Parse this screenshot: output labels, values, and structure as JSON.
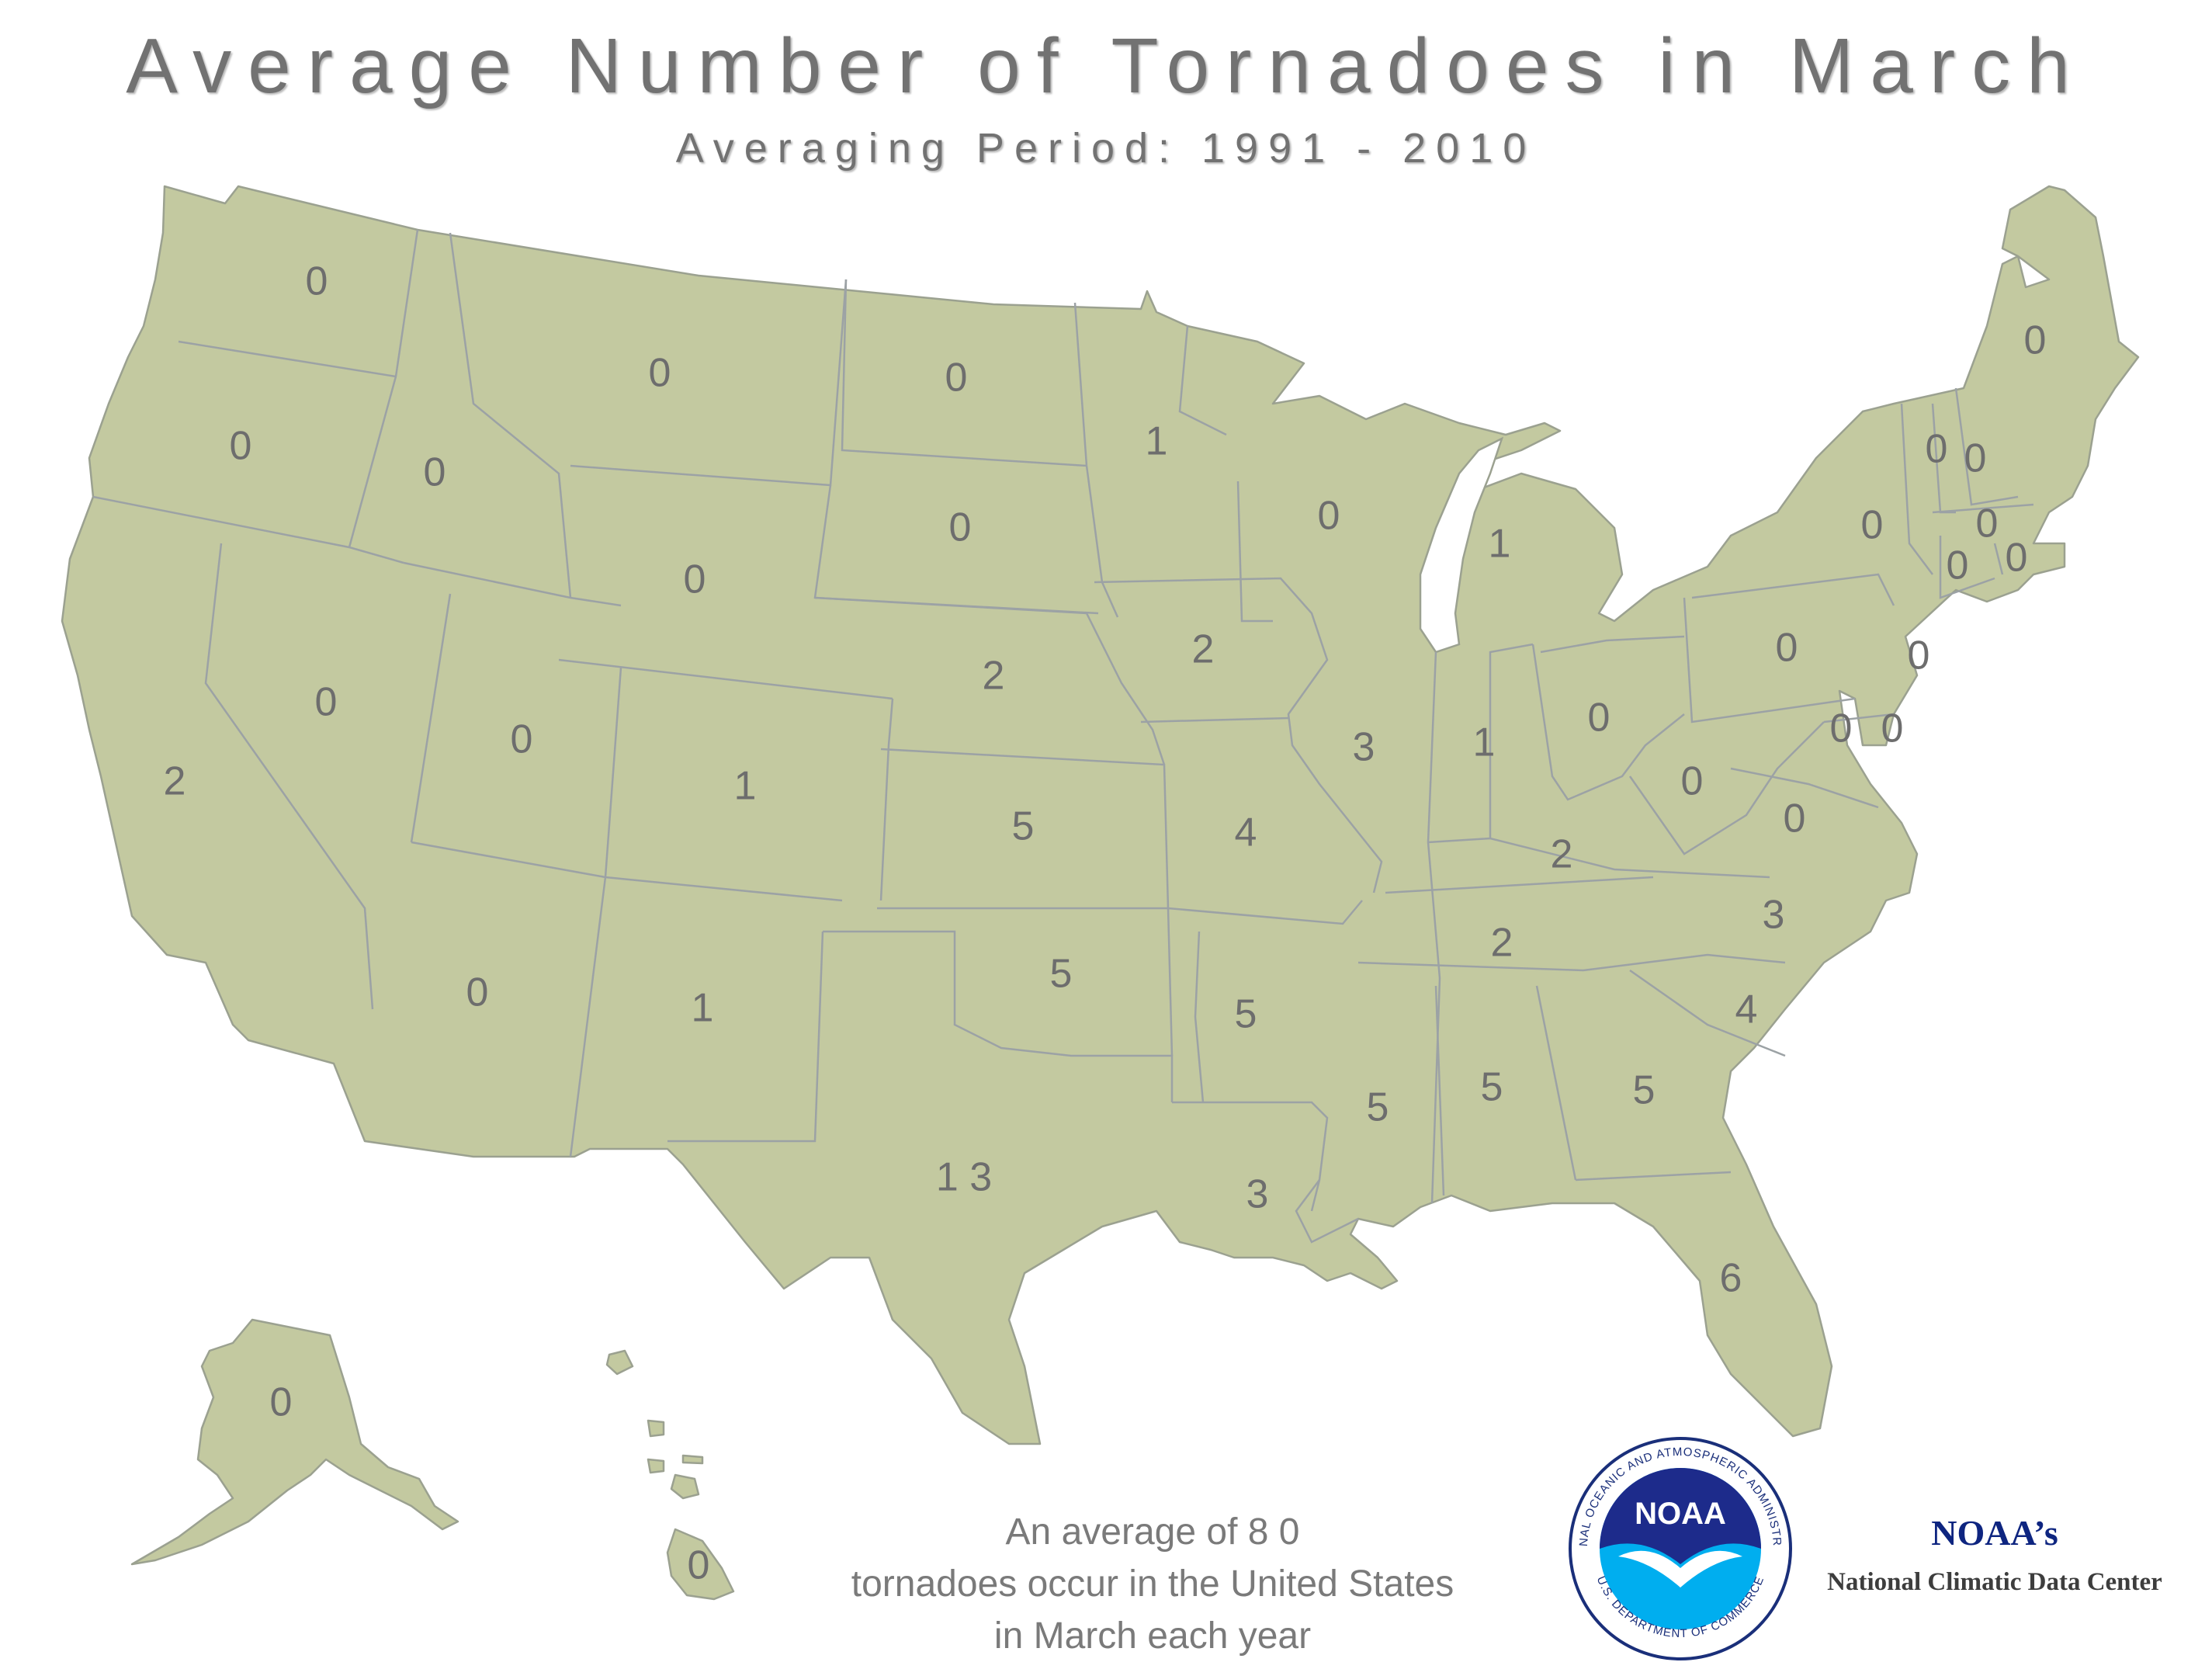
{
  "title": "Average Number of Tornadoes in March",
  "subtitle": "Averaging Period:  1991 - 2010",
  "map": {
    "fill_color": "#c3c9a0",
    "border_color": "#9ca2a5",
    "label_color": "#6d6d6d"
  },
  "states": {
    "WA": "0",
    "OR": "0",
    "CA": "2",
    "ID": "0",
    "NV": "0",
    "MT": "0",
    "WY": "0",
    "UT": "0",
    "AZ": "0",
    "CO": "1",
    "NM": "1",
    "ND": "0",
    "SD": "0",
    "NE": "2",
    "KS": "5",
    "OK": "5",
    "TX": "1 3",
    "MN": "1",
    "IA": "2",
    "MO": "4",
    "AR": "5",
    "LA": "3",
    "WI": "0",
    "IL": "3",
    "MI": "1",
    "IN": "1",
    "OH": "0",
    "KY": "2",
    "TN": "2",
    "MS": "5",
    "AL": "5",
    "GA": "5",
    "FL": "6",
    "SC": "4",
    "NC": "3",
    "VA": "0",
    "WV": "0",
    "PA": "0",
    "NY": "0",
    "NJ": "0",
    "DE": "0",
    "MD": "0",
    "VT": "0",
    "NH": "0",
    "ME": "0",
    "MA": "0",
    "CT": "0",
    "RI": "0",
    "AK": "0",
    "HI": "0"
  },
  "summary": {
    "line1": "An average of 8 0",
    "line2": "tornadoes occur in the United States",
    "line3": "in March each year"
  },
  "logo": {
    "badge_text": "NOAA",
    "ring_text": "NATIONAL OCEANIC AND ATMOSPHERIC ADMINISTRATION",
    "ring_text_bottom": "U.S. DEPARTMENT OF COMMERCE",
    "heading": "NOAA’s",
    "name": "National Climatic Data Center"
  }
}
